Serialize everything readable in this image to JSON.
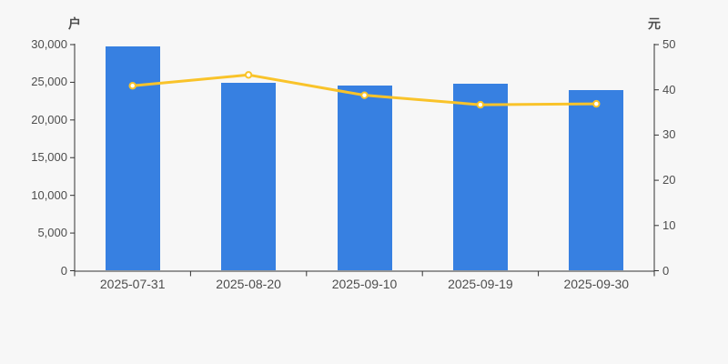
{
  "page": {
    "background_color": "#f7f7f7",
    "axis_line_color": "#333333",
    "label_color": "#4d4d4d"
  },
  "chart_data": {
    "type": "bar",
    "subtype": "bar-and-line-dual-axis",
    "title": "",
    "categories": [
      "2025-07-31",
      "2025-08-20",
      "2025-09-10",
      "2025-09-19",
      "2025-09-30"
    ],
    "series": [
      {
        "name": "户",
        "type": "bar",
        "axis": "left",
        "color": "#3780e1",
        "values": [
          29760,
          24930,
          24600,
          24810,
          23960
        ]
      },
      {
        "name": "元",
        "type": "line",
        "axis": "right",
        "color": "#f9c32a",
        "marker": "hollow-circle",
        "marker_fill": "#ffffff",
        "values": [
          40.9,
          43.3,
          38.8,
          36.7,
          36.9
        ]
      }
    ],
    "left_axis": {
      "title": "户",
      "min": 0,
      "max": 30000,
      "tick_step": 5000,
      "tick_labels": [
        "0",
        "5,000",
        "10,000",
        "15,000",
        "20,000",
        "25,000",
        "30,000"
      ]
    },
    "right_axis": {
      "title": "元",
      "min": 0,
      "max": 50,
      "tick_step": 10,
      "tick_labels": [
        "0",
        "10",
        "20",
        "30",
        "40",
        "50"
      ]
    },
    "grid": false,
    "legend": false
  }
}
